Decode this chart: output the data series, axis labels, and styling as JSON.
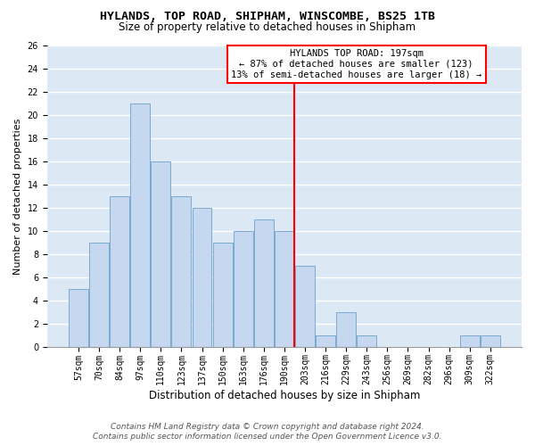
{
  "title": "HYLANDS, TOP ROAD, SHIPHAM, WINSCOMBE, BS25 1TB",
  "subtitle": "Size of property relative to detached houses in Shipham",
  "xlabel": "Distribution of detached houses by size in Shipham",
  "ylabel": "Number of detached properties",
  "footer1": "Contains HM Land Registry data © Crown copyright and database right 2024.",
  "footer2": "Contains public sector information licensed under the Open Government Licence v3.0.",
  "categories": [
    "57sqm",
    "70sqm",
    "84sqm",
    "97sqm",
    "110sqm",
    "123sqm",
    "137sqm",
    "150sqm",
    "163sqm",
    "176sqm",
    "190sqm",
    "203sqm",
    "216sqm",
    "229sqm",
    "243sqm",
    "256sqm",
    "269sqm",
    "282sqm",
    "296sqm",
    "309sqm",
    "322sqm"
  ],
  "values": [
    5,
    9,
    13,
    21,
    16,
    13,
    12,
    9,
    10,
    11,
    10,
    7,
    1,
    3,
    1,
    0,
    0,
    0,
    0,
    1,
    1
  ],
  "bar_color": "#c5d8f0",
  "bar_edge_color": "#7aaad0",
  "vline_x": 10.5,
  "vline_color": "red",
  "annotation_text": "HYLANDS TOP ROAD: 197sqm\n← 87% of detached houses are smaller (123)\n13% of semi-detached houses are larger (18) →",
  "annotation_box_color": "white",
  "annotation_box_edge_color": "red",
  "ylim": [
    0,
    26
  ],
  "yticks": [
    0,
    2,
    4,
    6,
    8,
    10,
    12,
    14,
    16,
    18,
    20,
    22,
    24,
    26
  ],
  "background_color": "#dde8f5",
  "grid_color": "white",
  "title_fontsize": 9.5,
  "subtitle_fontsize": 8.5,
  "xlabel_fontsize": 8.5,
  "ylabel_fontsize": 8,
  "tick_fontsize": 7,
  "annotation_fontsize": 7.5,
  "footer_fontsize": 6.5
}
